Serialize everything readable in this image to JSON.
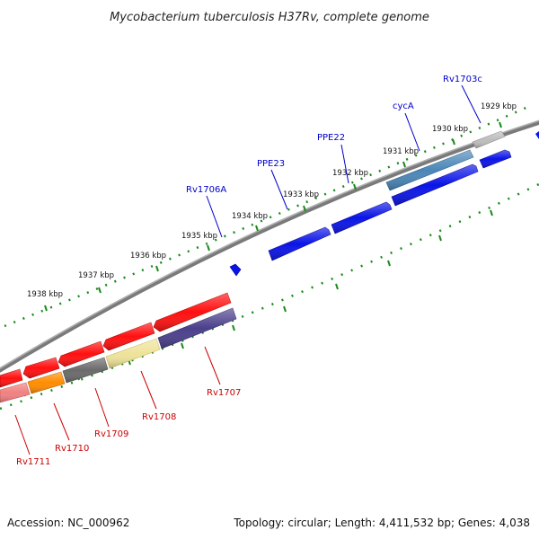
{
  "title": "Mycobacterium tuberculosis H37Rv, complete genome",
  "footer": {
    "accession": "Accession: NC_000962",
    "summary": "Topology: circular; Length: 4,411,532 bp; Genes: 4,038"
  },
  "colors": {
    "backbone": "#7a7a7a",
    "ticks": "#1a8a1a",
    "forward_label": "#0000cc",
    "reverse_label": "#cc0000"
  },
  "scale_labels": [
    "1929 kbp",
    "1930 kbp",
    "1931 kbp",
    "1932 kbp",
    "1933 kbp",
    "1934 kbp",
    "1935 kbp",
    "1936 kbp",
    "1937 kbp",
    "1938 kbp"
  ],
  "forward_genes": [
    {
      "label": "Rv1703c",
      "color": "#bdbdbd"
    },
    {
      "label": "cycA",
      "color": "#4a86b8"
    },
    {
      "label": "PPE22",
      "color": "#0a14e6"
    },
    {
      "label": "PPE23",
      "color": "#0a14e6"
    },
    {
      "label": "Rv1706A",
      "color": "#0a14e6"
    }
  ],
  "reverse_genes": [
    {
      "label": "Rv1707",
      "color": "#4b3f8c"
    },
    {
      "label": "Rv1708",
      "color": "#efe39a"
    },
    {
      "label": "Rv1709",
      "color": "#6a6a6a"
    },
    {
      "label": "Rv1710",
      "color": "#ff8c00"
    },
    {
      "label": "Rv1711",
      "color": "#f08080"
    }
  ]
}
